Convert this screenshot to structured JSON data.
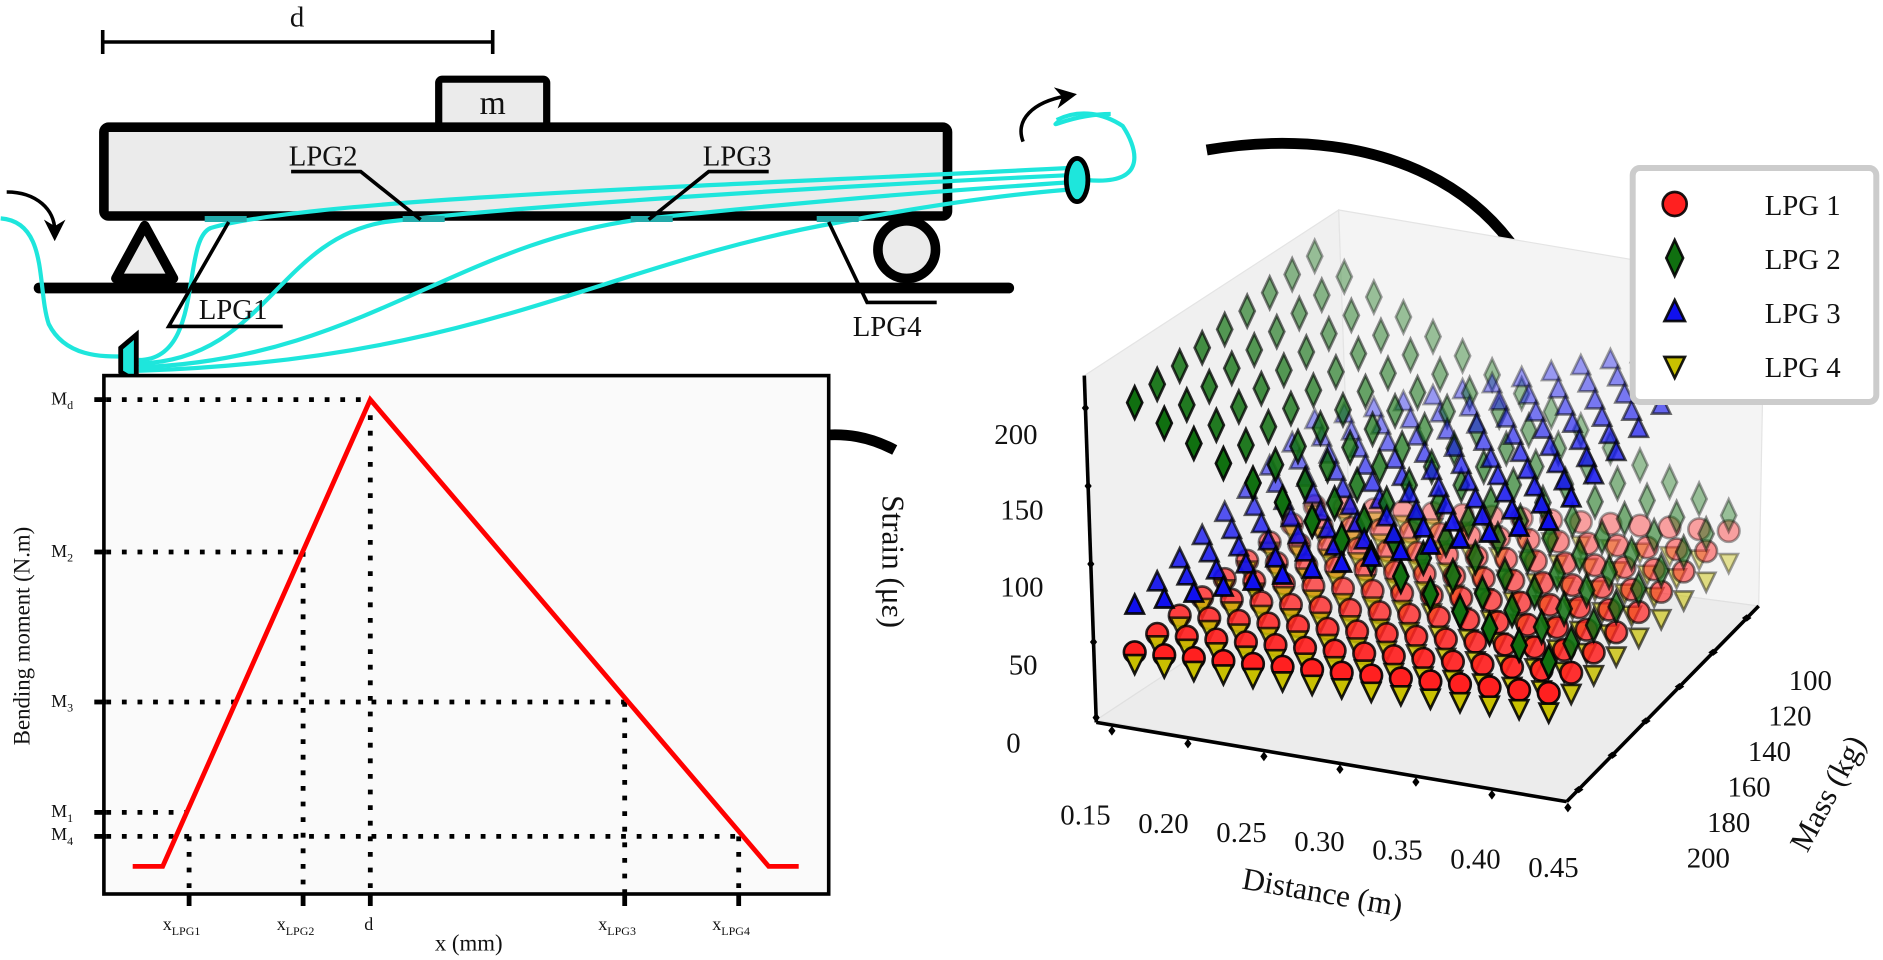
{
  "beam": {
    "dimension_label": "d",
    "mass_label": "m",
    "sensor_labels": [
      "LPG1",
      "LPG2",
      "LPG3",
      "LPG4"
    ],
    "fiber_color": "#1ee6dc"
  },
  "moment_plot": {
    "ylabel": "Bending moment (N.m)",
    "xlabel": "x (mm)",
    "y_ticks": [
      {
        "main": "M",
        "sub": "d"
      },
      {
        "main": "M",
        "sub": "2"
      },
      {
        "main": "M",
        "sub": "3"
      },
      {
        "main": "M",
        "sub": "1"
      },
      {
        "main": "M",
        "sub": "4"
      }
    ],
    "x_ticks": [
      {
        "main": "x",
        "sub": "LPG1"
      },
      {
        "main": "x",
        "sub": "LPG2"
      },
      {
        "main": "d",
        "sub": ""
      },
      {
        "main": "x",
        "sub": "LPG3"
      },
      {
        "main": "x",
        "sub": "LPG4"
      }
    ],
    "line_color": "#ff0000"
  },
  "scatter3d": {
    "zlabel": "Strain (με)",
    "xlabel": "Distance (m)",
    "ylabel": "Mass (kg)",
    "z_ticks": [
      "200",
      "150",
      "100",
      "50",
      "0"
    ],
    "x_ticks": [
      "0.15",
      "0.20",
      "0.25",
      "0.30",
      "0.35",
      "0.40",
      "0.45"
    ],
    "y_ticks": [
      "100",
      "120",
      "140",
      "160",
      "180",
      "200"
    ],
    "legend": [
      {
        "label": "LPG 1",
        "marker": "circle",
        "color": "#ff2020"
      },
      {
        "label": "LPG 2",
        "marker": "diamond",
        "color": "#107010"
      },
      {
        "label": "LPG 3",
        "marker": "triangle-up",
        "color": "#1010ee"
      },
      {
        "label": "LPG 4",
        "marker": "triangle-down",
        "color": "#c8c000"
      }
    ]
  }
}
